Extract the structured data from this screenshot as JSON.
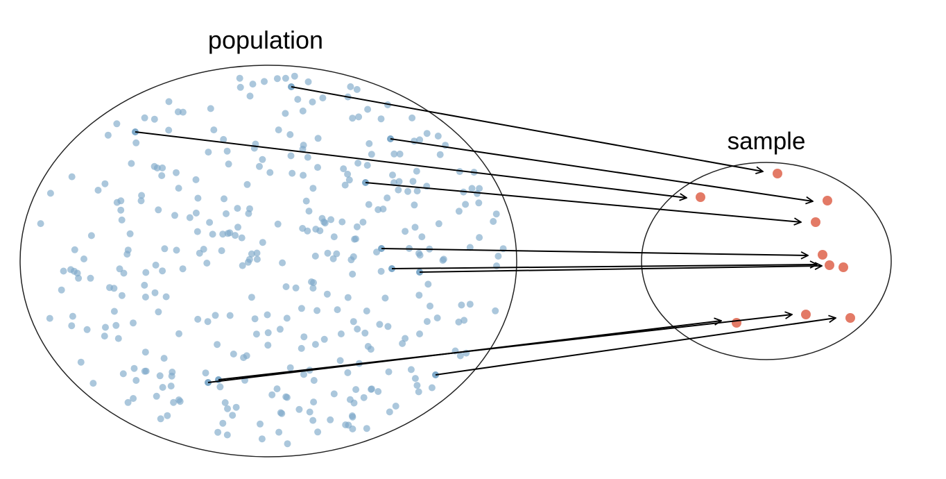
{
  "population": {
    "label": "population"
  },
  "sample": {
    "label": "sample"
  }
}
